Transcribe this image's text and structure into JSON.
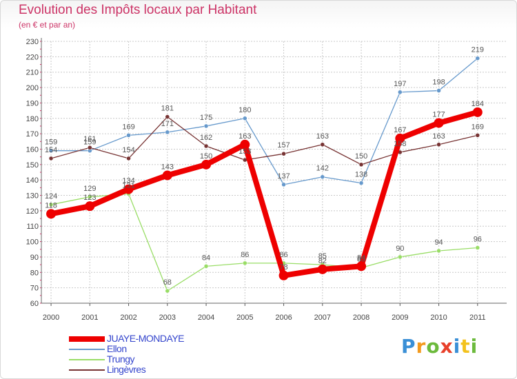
{
  "chart_data": {
    "type": "line",
    "title": "Evolution des Impôts locaux par Habitant",
    "subtitle": "(en € et par an)",
    "xlabel": "",
    "ylabel": "",
    "ylim": [
      60,
      230
    ],
    "yticks": [
      60,
      70,
      80,
      90,
      100,
      110,
      120,
      130,
      140,
      150,
      160,
      170,
      180,
      190,
      200,
      210,
      220,
      230
    ],
    "categories": [
      "2000",
      "2001",
      "2002",
      "2003",
      "2004",
      "2005",
      "2006",
      "2007",
      "2008",
      "2009",
      "2010",
      "2011"
    ],
    "grid": true,
    "legend_position": "bottom-left",
    "series": [
      {
        "name": "Ellon",
        "color": "#6699cc",
        "values": [
          159,
          159,
          169,
          171,
          175,
          180,
          137,
          142,
          138,
          197,
          198,
          219
        ]
      },
      {
        "name": "Trungy",
        "color": "#99dd66",
        "values": [
          124,
          129,
          131,
          68,
          84,
          86,
          86,
          85,
          83,
          90,
          94,
          96
        ]
      },
      {
        "name": "Lingèvres",
        "color": "#773333",
        "values": [
          154,
          161,
          154,
          181,
          162,
          153,
          157,
          163,
          150,
          158,
          163,
          169
        ]
      },
      {
        "name": "JUAYE-MONDAYE",
        "color": "#ee0000",
        "values": [
          118,
          123,
          134,
          143,
          150,
          163,
          78,
          82,
          84,
          167,
          177,
          184
        ]
      }
    ],
    "legend_order": [
      "JUAYE-MONDAYE",
      "Ellon",
      "Trungy",
      "Lingèvres"
    ]
  },
  "brand": {
    "letters": [
      "P",
      "r",
      "o",
      "x",
      "i",
      "t",
      "i"
    ]
  }
}
